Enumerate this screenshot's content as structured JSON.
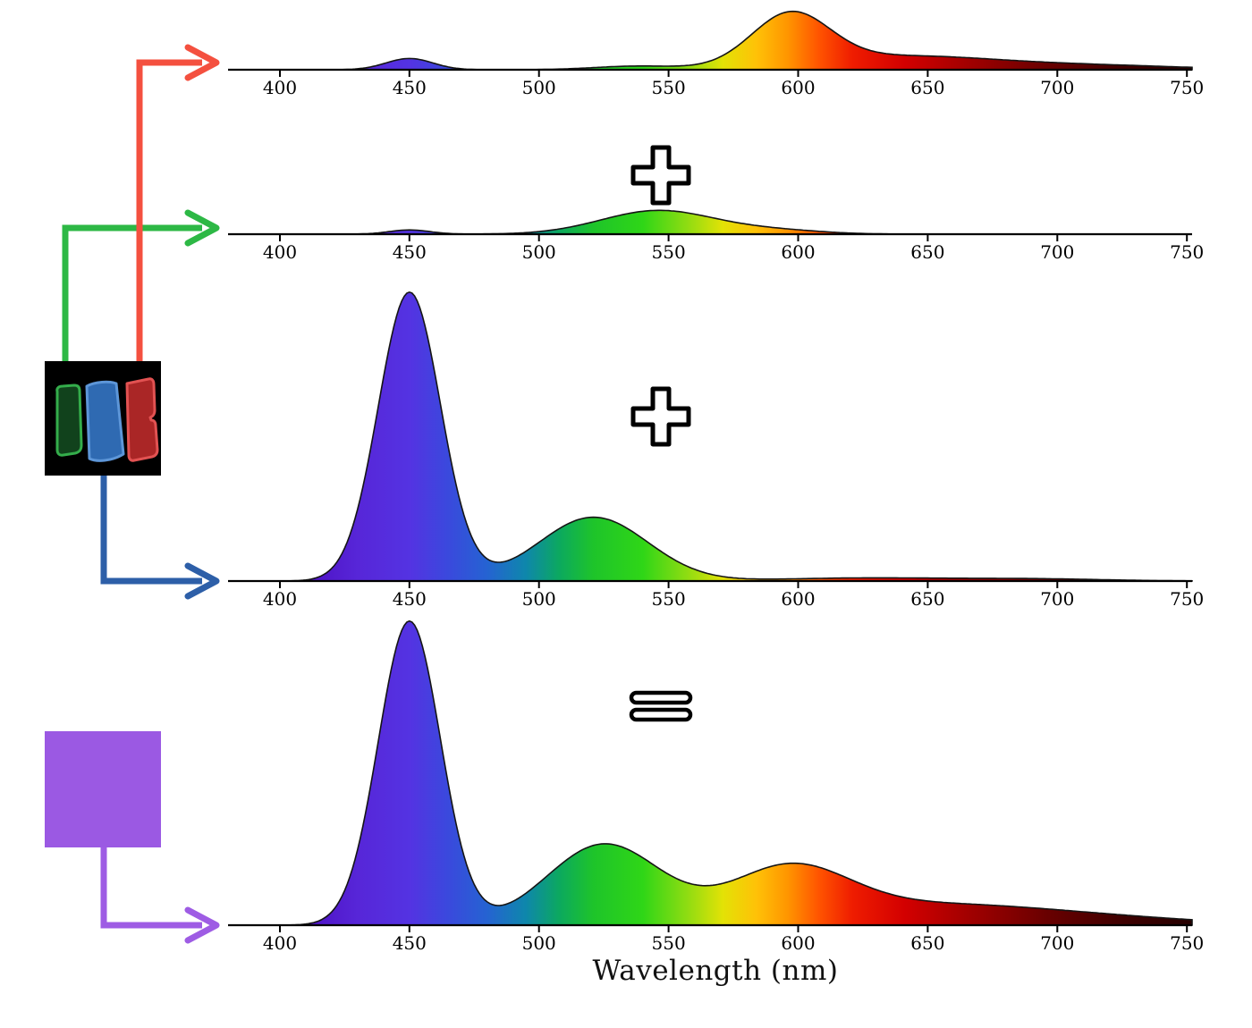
{
  "figure": {
    "xlabel": "Wavelength (nm)",
    "description_names": [
      "red-subpixel-spectrum",
      "green-subpixel-spectrum",
      "blue-subpixel-spectrum",
      "total-display-spectrum"
    ]
  },
  "operators": [
    "+",
    "+",
    "="
  ],
  "colors": {
    "arrow_red": "#f4503f",
    "arrow_green": "#2db845",
    "arrow_blue": "#2d5fa8",
    "arrow_purple": "#9e5ce4",
    "purple_swatch": "#9b59e3",
    "subpixel_photo_bg": "#000000",
    "green_subpixel_fill": "#11421c",
    "green_subpixel_stroke": "#34ad4b",
    "blue_subpixel_fill": "#2f6ab2",
    "blue_subpixel_stroke": "#5d96d8",
    "red_subpixel_fill": "#aa2626",
    "red_subpixel_stroke": "#e25252",
    "axis": "#000000",
    "curve_outline": "#151515"
  },
  "spectrum_gradient": [
    {
      "nm": 380,
      "color": "#2d0a66"
    },
    {
      "nm": 405,
      "color": "#4b0bbf"
    },
    {
      "nm": 430,
      "color": "#5726d8"
    },
    {
      "nm": 450,
      "color": "#5433e2"
    },
    {
      "nm": 465,
      "color": "#3a49dd"
    },
    {
      "nm": 480,
      "color": "#2563d2"
    },
    {
      "nm": 495,
      "color": "#0e87ab"
    },
    {
      "nm": 508,
      "color": "#0ca95e"
    },
    {
      "nm": 521,
      "color": "#1ec42a"
    },
    {
      "nm": 540,
      "color": "#2fd617"
    },
    {
      "nm": 557,
      "color": "#8edc12"
    },
    {
      "nm": 571,
      "color": "#e3e206"
    },
    {
      "nm": 584,
      "color": "#ffc107"
    },
    {
      "nm": 596,
      "color": "#ff9500"
    },
    {
      "nm": 608,
      "color": "#ff5400"
    },
    {
      "nm": 621,
      "color": "#ef1c00"
    },
    {
      "nm": 641,
      "color": "#d30000"
    },
    {
      "nm": 666,
      "color": "#a10000"
    },
    {
      "nm": 696,
      "color": "#690000"
    },
    {
      "nm": 726,
      "color": "#3e0000"
    },
    {
      "nm": 752,
      "color": "#260000"
    }
  ],
  "chart_data": [
    {
      "name": "red-subpixel-emission",
      "type": "area",
      "x_range": [
        380,
        752
      ],
      "xlabel": "Wavelength (nm)",
      "ylabel": "",
      "ticks": [
        400,
        450,
        500,
        550,
        600,
        650,
        700,
        750
      ],
      "grid": false,
      "peaks": [
        {
          "center_nm": 450,
          "sigma_nm": 9,
          "amplitude": 0.037
        },
        {
          "center_nm": 537,
          "sigma_nm": 16,
          "amplitude": 0.011
        },
        {
          "center_nm": 597,
          "sigma_nm": 15,
          "amplitude": 0.168
        },
        {
          "center_nm": 640,
          "sigma_nm": 38,
          "amplitude": 0.045
        },
        {
          "center_nm": 718,
          "sigma_nm": 34,
          "amplitude": 0.012
        }
      ]
    },
    {
      "name": "green-subpixel-emission",
      "type": "area",
      "x_range": [
        380,
        752
      ],
      "xlabel": "Wavelength (nm)",
      "ylabel": "",
      "ticks": [
        400,
        450,
        500,
        550,
        600,
        650,
        700,
        750
      ],
      "grid": false,
      "peaks": [
        {
          "center_nm": 450,
          "sigma_nm": 8,
          "amplitude": 0.014
        },
        {
          "center_nm": 546,
          "sigma_nm": 22,
          "amplitude": 0.078
        },
        {
          "center_nm": 592,
          "sigma_nm": 18,
          "amplitude": 0.012
        }
      ]
    },
    {
      "name": "blue-subpixel-emission",
      "type": "area",
      "x_range": [
        380,
        752
      ],
      "xlabel": "Wavelength (nm)",
      "ylabel": "",
      "ticks": [
        400,
        450,
        500,
        550,
        600,
        650,
        700,
        750
      ],
      "grid": false,
      "peaks": [
        {
          "center_nm": 450,
          "sigma_nm": 12,
          "amplitude": 0.95
        },
        {
          "center_nm": 521,
          "sigma_nm": 21,
          "amplitude": 0.21
        },
        {
          "center_nm": 625,
          "sigma_nm": 32,
          "amplitude": 0.01
        },
        {
          "center_nm": 690,
          "sigma_nm": 28,
          "amplitude": 0.007
        }
      ]
    },
    {
      "name": "total-display-spectrum",
      "type": "area",
      "x_range": [
        380,
        752
      ],
      "xlabel": "Wavelength (nm)",
      "ylabel": "",
      "ticks": [
        400,
        450,
        500,
        550,
        600,
        650,
        700,
        750
      ],
      "grid": false,
      "peaks": [
        {
          "center_nm": 450,
          "sigma_nm": 12,
          "amplitude": 1.0
        },
        {
          "center_nm": 525,
          "sigma_nm": 22,
          "amplitude": 0.265
        },
        {
          "center_nm": 596,
          "sigma_nm": 23,
          "amplitude": 0.17
        },
        {
          "center_nm": 650,
          "sigma_nm": 45,
          "amplitude": 0.065
        },
        {
          "center_nm": 720,
          "sigma_nm": 40,
          "amplitude": 0.018
        }
      ]
    }
  ]
}
